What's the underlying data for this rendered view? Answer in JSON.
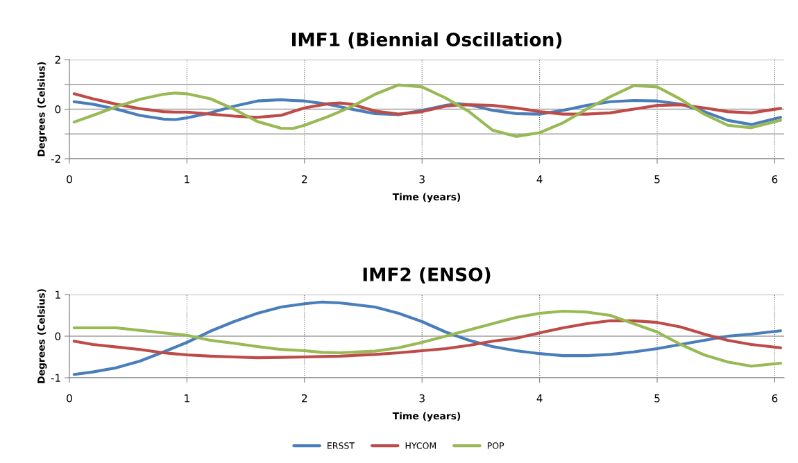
{
  "chart_data": [
    {
      "type": "line",
      "title": "IMF1 (Biennial Oscillation)",
      "xlabel": "Time (years)",
      "ylabel": "Degrees (Celsius)",
      "xlim": [
        0,
        6.08
      ],
      "xticks": [
        0,
        1,
        2,
        3,
        4,
        5,
        6
      ],
      "ylim": [
        -2,
        2
      ],
      "yticks": [
        -2,
        {
          "value": -1,
          "label": null
        },
        0,
        {
          "value": 1,
          "label": null
        },
        2
      ],
      "grid": true,
      "marker": "none",
      "line_style": "solid",
      "legend": "bottom",
      "x": [
        0.04,
        0.2,
        0.4,
        0.6,
        0.8,
        0.9,
        1.0,
        1.2,
        1.4,
        1.6,
        1.8,
        1.9,
        2.0,
        2.2,
        2.3,
        2.4,
        2.6,
        2.8,
        3.0,
        3.2,
        3.3,
        3.4,
        3.6,
        3.8,
        4.0,
        4.2,
        4.4,
        4.6,
        4.8,
        5.0,
        5.2,
        5.4,
        5.6,
        5.8,
        6.05
      ],
      "series": [
        {
          "name": "ERSST",
          "color": "#4a7ebb",
          "values": [
            0.3,
            0.2,
            0.0,
            -0.25,
            -0.4,
            -0.42,
            -0.35,
            -0.15,
            0.12,
            0.33,
            0.38,
            0.35,
            0.33,
            0.2,
            0.1,
            0.0,
            -0.18,
            -0.22,
            -0.05,
            0.15,
            0.22,
            0.18,
            -0.05,
            -0.18,
            -0.2,
            -0.05,
            0.15,
            0.3,
            0.35,
            0.33,
            0.2,
            -0.1,
            -0.45,
            -0.62,
            -0.33
          ]
        },
        {
          "name": "HYCOM",
          "color": "#be4b48",
          "values": [
            0.62,
            0.42,
            0.2,
            0.02,
            -0.1,
            -0.12,
            -0.12,
            -0.2,
            -0.28,
            -0.33,
            -0.25,
            -0.1,
            0.05,
            0.22,
            0.25,
            0.2,
            -0.08,
            -0.2,
            -0.1,
            0.12,
            0.16,
            0.18,
            0.15,
            0.05,
            -0.1,
            -0.2,
            -0.2,
            -0.15,
            0.0,
            0.15,
            0.18,
            0.05,
            -0.1,
            -0.15,
            0.03
          ]
        },
        {
          "name": "POP",
          "color": "#98b954",
          "values": [
            -0.52,
            -0.25,
            0.1,
            0.4,
            0.6,
            0.65,
            0.62,
            0.42,
            0.0,
            -0.5,
            -0.77,
            -0.78,
            -0.65,
            -0.3,
            -0.1,
            0.1,
            0.6,
            0.98,
            0.9,
            0.45,
            0.18,
            -0.1,
            -0.85,
            -1.1,
            -0.95,
            -0.55,
            0.0,
            0.5,
            0.95,
            0.9,
            0.4,
            -0.2,
            -0.65,
            -0.75,
            -0.45
          ]
        }
      ]
    },
    {
      "type": "line",
      "title": "IMF2 (ENSO)",
      "xlabel": "Time (years)",
      "ylabel": "Degrees (Celsius)",
      "xlim": [
        0,
        6.08
      ],
      "xticks": [
        0,
        1,
        2,
        3,
        4,
        5,
        6
      ],
      "ylim": [
        -1,
        1
      ],
      "yticks": [
        -1,
        0,
        1
      ],
      "grid": true,
      "marker": "none",
      "line_style": "solid",
      "legend": "bottom",
      "x": [
        0.04,
        0.2,
        0.4,
        0.6,
        0.8,
        1.0,
        1.2,
        1.4,
        1.6,
        1.8,
        2.0,
        2.15,
        2.3,
        2.6,
        2.8,
        3.0,
        3.2,
        3.4,
        3.6,
        3.8,
        4.0,
        4.2,
        4.4,
        4.6,
        4.8,
        5.0,
        5.2,
        5.4,
        5.6,
        5.8,
        6.05
      ],
      "series": [
        {
          "name": "ERSST",
          "color": "#4a7ebb",
          "values": [
            -0.92,
            -0.86,
            -0.76,
            -0.6,
            -0.38,
            -0.15,
            0.12,
            0.35,
            0.55,
            0.7,
            0.78,
            0.82,
            0.8,
            0.7,
            0.55,
            0.35,
            0.1,
            -0.1,
            -0.25,
            -0.35,
            -0.42,
            -0.47,
            -0.47,
            -0.44,
            -0.38,
            -0.3,
            -0.2,
            -0.1,
            0.0,
            0.05,
            0.13
          ]
        },
        {
          "name": "HYCOM",
          "color": "#be4b48",
          "values": [
            -0.12,
            -0.2,
            -0.26,
            -0.32,
            -0.4,
            -0.45,
            -0.48,
            -0.5,
            -0.52,
            -0.51,
            -0.5,
            -0.49,
            -0.48,
            -0.44,
            -0.4,
            -0.35,
            -0.3,
            -0.22,
            -0.12,
            -0.05,
            0.08,
            0.2,
            0.3,
            0.37,
            0.37,
            0.33,
            0.22,
            0.05,
            -0.1,
            -0.2,
            -0.28
          ]
        },
        {
          "name": "POP",
          "color": "#98b954",
          "values": [
            0.2,
            0.2,
            0.2,
            0.14,
            0.08,
            0.02,
            -0.1,
            -0.17,
            -0.25,
            -0.32,
            -0.35,
            -0.39,
            -0.4,
            -0.36,
            -0.28,
            -0.15,
            0.0,
            0.15,
            0.3,
            0.45,
            0.55,
            0.6,
            0.58,
            0.5,
            0.3,
            0.1,
            -0.2,
            -0.45,
            -0.62,
            -0.72,
            -0.65
          ]
        }
      ]
    }
  ]
}
